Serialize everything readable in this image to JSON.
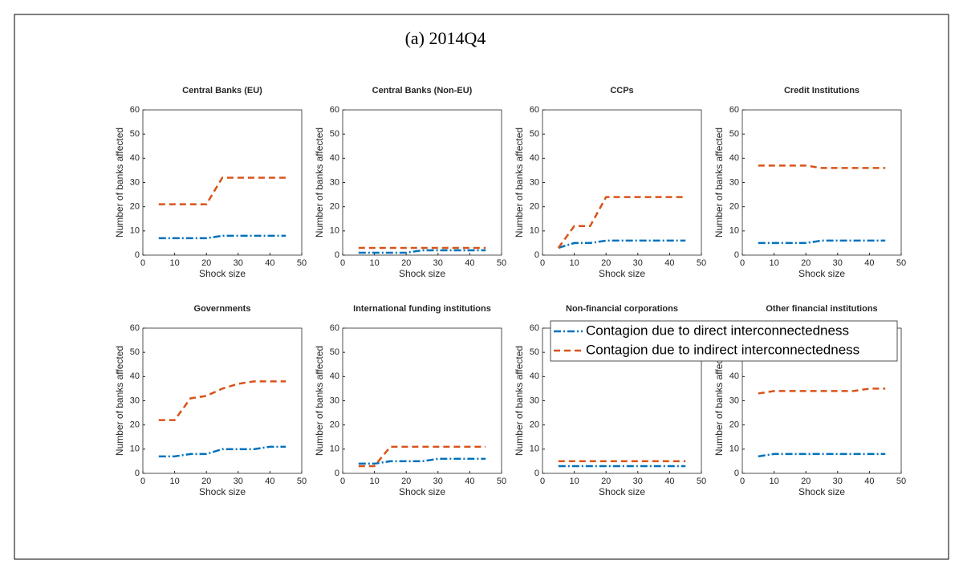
{
  "figure_title": "(a) 2014Q4",
  "chart_data": [
    {
      "type": "line",
      "title": "Central Banks (EU)",
      "xlabel": "Shock size",
      "ylabel": "Number of banks affected",
      "x": [
        5,
        10,
        15,
        20,
        25,
        30,
        35,
        40,
        45
      ],
      "xlim": [
        0,
        50
      ],
      "xticks": [
        0,
        10,
        20,
        30,
        40,
        50
      ],
      "ylim": [
        0,
        60
      ],
      "yticks": [
        0,
        10,
        20,
        30,
        40,
        50,
        60
      ],
      "series": [
        {
          "color": "#0072BD",
          "dash": "dashdot",
          "values": [
            7,
            7,
            7,
            7,
            8,
            8,
            8,
            8,
            8
          ]
        },
        {
          "color": "#D95319",
          "dash": "dashed",
          "values": [
            21,
            21,
            21,
            21,
            32,
            32,
            32,
            32,
            32
          ]
        }
      ]
    },
    {
      "type": "line",
      "title": "Central Banks (Non-EU)",
      "xlabel": "Shock size",
      "ylabel": "Number of banks affected",
      "x": [
        5,
        10,
        15,
        20,
        25,
        30,
        35,
        40,
        45
      ],
      "xlim": [
        0,
        50
      ],
      "xticks": [
        0,
        10,
        20,
        30,
        40,
        50
      ],
      "ylim": [
        0,
        60
      ],
      "yticks": [
        0,
        10,
        20,
        30,
        40,
        50,
        60
      ],
      "series": [
        {
          "color": "#0072BD",
          "dash": "dashdot",
          "values": [
            1,
            1,
            1,
            1,
            2,
            2,
            2,
            2,
            2
          ]
        },
        {
          "color": "#D95319",
          "dash": "dashed",
          "values": [
            3,
            3,
            3,
            3,
            3,
            3,
            3,
            3,
            3
          ]
        }
      ]
    },
    {
      "type": "line",
      "title": "CCPs",
      "xlabel": "Shock size",
      "ylabel": "Number of banks affected",
      "x": [
        5,
        10,
        15,
        20,
        25,
        30,
        35,
        40,
        45
      ],
      "xlim": [
        0,
        50
      ],
      "xticks": [
        0,
        10,
        20,
        30,
        40,
        50
      ],
      "ylim": [
        0,
        60
      ],
      "yticks": [
        0,
        10,
        20,
        30,
        40,
        50,
        60
      ],
      "series": [
        {
          "color": "#0072BD",
          "dash": "dashdot",
          "values": [
            3,
            5,
            5,
            6,
            6,
            6,
            6,
            6,
            6
          ]
        },
        {
          "color": "#D95319",
          "dash": "dashed",
          "values": [
            3,
            12,
            12,
            24,
            24,
            24,
            24,
            24,
            24
          ]
        }
      ]
    },
    {
      "type": "line",
      "title": "Credit Institutions",
      "xlabel": "Shock size",
      "ylabel": "Number of banks affected",
      "x": [
        5,
        10,
        15,
        20,
        25,
        30,
        35,
        40,
        45
      ],
      "xlim": [
        0,
        50
      ],
      "xticks": [
        0,
        10,
        20,
        30,
        40,
        50
      ],
      "ylim": [
        0,
        60
      ],
      "yticks": [
        0,
        10,
        20,
        30,
        40,
        50,
        60
      ],
      "series": [
        {
          "color": "#0072BD",
          "dash": "dashdot",
          "values": [
            5,
            5,
            5,
            5,
            6,
            6,
            6,
            6,
            6
          ]
        },
        {
          "color": "#D95319",
          "dash": "dashed",
          "values": [
            37,
            37,
            37,
            37,
            36,
            36,
            36,
            36,
            36
          ]
        }
      ]
    },
    {
      "type": "line",
      "title": "Governments",
      "xlabel": "Shock size",
      "ylabel": "Number of banks affected",
      "x": [
        5,
        10,
        15,
        20,
        25,
        30,
        35,
        40,
        45
      ],
      "xlim": [
        0,
        50
      ],
      "xticks": [
        0,
        10,
        20,
        30,
        40,
        50
      ],
      "ylim": [
        0,
        60
      ],
      "yticks": [
        0,
        10,
        20,
        30,
        40,
        50,
        60
      ],
      "series": [
        {
          "color": "#0072BD",
          "dash": "dashdot",
          "values": [
            7,
            7,
            8,
            8,
            10,
            10,
            10,
            11,
            11
          ]
        },
        {
          "color": "#D95319",
          "dash": "dashed",
          "values": [
            22,
            22,
            31,
            32,
            35,
            37,
            38,
            38,
            38
          ]
        }
      ]
    },
    {
      "type": "line",
      "title": "International funding institutions",
      "xlabel": "Shock size",
      "ylabel": "Number of banks affected",
      "x": [
        5,
        10,
        15,
        20,
        25,
        30,
        35,
        40,
        45
      ],
      "xlim": [
        0,
        50
      ],
      "xticks": [
        0,
        10,
        20,
        30,
        40,
        50
      ],
      "ylim": [
        0,
        60
      ],
      "yticks": [
        0,
        10,
        20,
        30,
        40,
        50,
        60
      ],
      "series": [
        {
          "color": "#0072BD",
          "dash": "dashdot",
          "values": [
            4,
            4,
            5,
            5,
            5,
            6,
            6,
            6,
            6
          ]
        },
        {
          "color": "#D95319",
          "dash": "dashed",
          "values": [
            3,
            3,
            11,
            11,
            11,
            11,
            11,
            11,
            11
          ]
        }
      ]
    },
    {
      "type": "line",
      "title": "Non-financial corporations",
      "xlabel": "Shock size",
      "ylabel": "Number of banks affected",
      "x": [
        5,
        10,
        15,
        20,
        25,
        30,
        35,
        40,
        45
      ],
      "xlim": [
        0,
        50
      ],
      "xticks": [
        0,
        10,
        20,
        30,
        40,
        50
      ],
      "ylim": [
        0,
        60
      ],
      "yticks": [
        0,
        10,
        20,
        30,
        40,
        50,
        60
      ],
      "legend": "northeast",
      "series": [
        {
          "name": "Contagion due to direct interconnectedness",
          "color": "#0072BD",
          "dash": "dashdot",
          "values": [
            3,
            3,
            3,
            3,
            3,
            3,
            3,
            3,
            3
          ]
        },
        {
          "name": "Contagion due to indirect interconnectedness",
          "color": "#D95319",
          "dash": "dashed",
          "values": [
            5,
            5,
            5,
            5,
            5,
            5,
            5,
            5,
            5
          ]
        }
      ]
    },
    {
      "type": "line",
      "title": "Other financial institutions",
      "xlabel": "Shock size",
      "ylabel": "Number of banks affected",
      "x": [
        5,
        10,
        15,
        20,
        25,
        30,
        35,
        40,
        45
      ],
      "xlim": [
        0,
        50
      ],
      "xticks": [
        0,
        10,
        20,
        30,
        40,
        50
      ],
      "ylim": [
        0,
        60
      ],
      "yticks": [
        0,
        10,
        20,
        30,
        40,
        50,
        60
      ],
      "series": [
        {
          "color": "#0072BD",
          "dash": "dashdot",
          "values": [
            7,
            8,
            8,
            8,
            8,
            8,
            8,
            8,
            8
          ]
        },
        {
          "color": "#D95319",
          "dash": "dashed",
          "values": [
            33,
            34,
            34,
            34,
            34,
            34,
            34,
            35,
            35
          ]
        }
      ]
    }
  ]
}
